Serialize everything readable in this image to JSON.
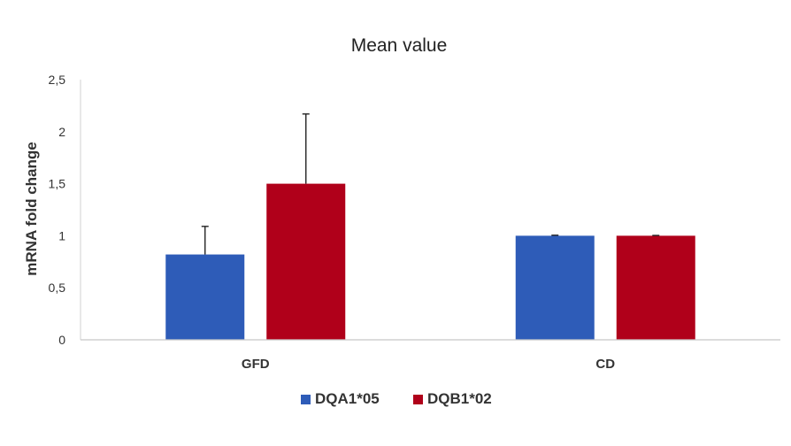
{
  "chart_data": {
    "type": "bar",
    "title": "Mean value",
    "xlabel": "",
    "ylabel": "mRNA fold change",
    "categories": [
      "GFD",
      "CD"
    ],
    "ylim": [
      0,
      2.5
    ],
    "yticks": [
      0,
      0.5,
      1,
      1.5,
      2,
      2.5
    ],
    "ytick_labels": [
      "0",
      "0,5",
      "1",
      "1,5",
      "2",
      "2,5"
    ],
    "series": [
      {
        "name": "DQA1*05",
        "color": "#2e5cb8",
        "values": [
          0.82,
          1.0
        ],
        "error": [
          0.27,
          0.005
        ]
      },
      {
        "name": "DQB1*02",
        "color": "#b0001a",
        "values": [
          1.5,
          1.0
        ],
        "error": [
          0.67,
          0.003
        ]
      }
    ],
    "legend_position": "bottom",
    "grid": false
  }
}
